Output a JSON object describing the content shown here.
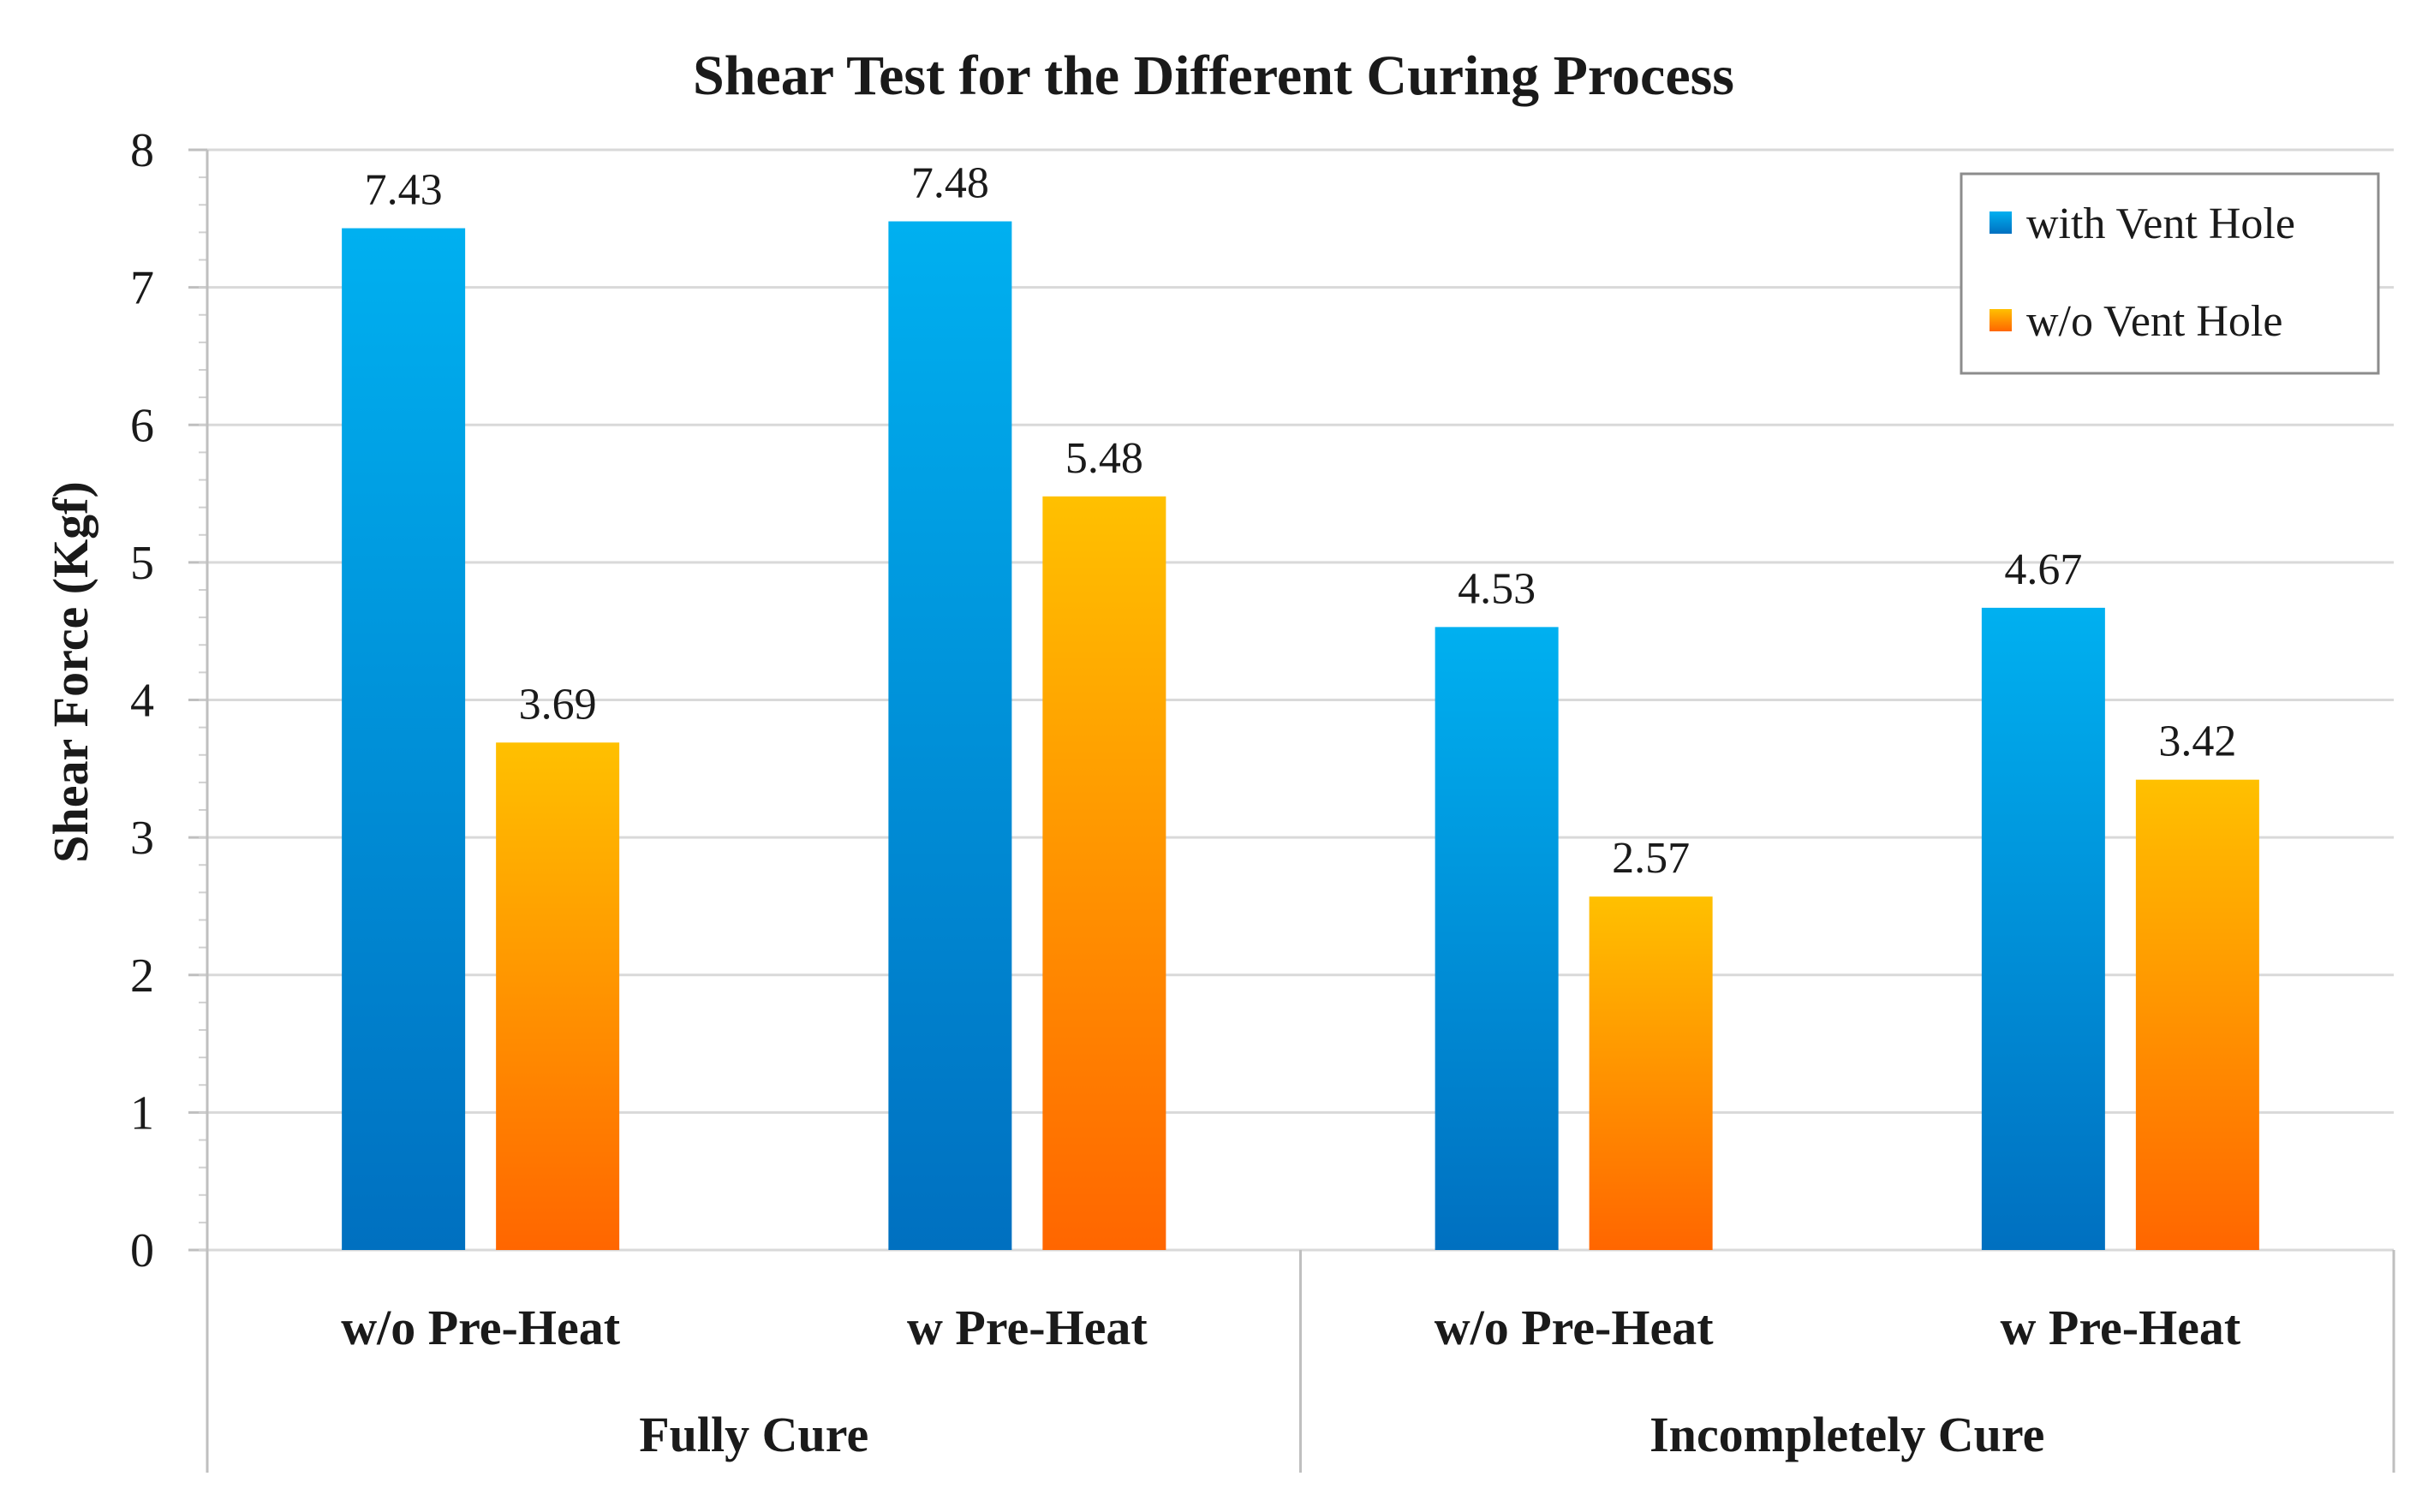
{
  "chart_data": {
    "type": "bar",
    "title": "Shear Test for the Different Curing Process",
    "ylabel": "Shear Force (Kgf)",
    "xlabel": "",
    "ylim": [
      0,
      8
    ],
    "yticks": [
      0,
      1,
      2,
      3,
      4,
      5,
      6,
      7,
      8
    ],
    "grid": true,
    "legend_position": "top-right",
    "groups": [
      {
        "label": "Fully Cure",
        "categories": [
          "w/o Pre-Heat",
          "w Pre-Heat"
        ]
      },
      {
        "label": "Incompletely Cure",
        "categories": [
          "w/o Pre-Heat",
          "w Pre-Heat"
        ]
      }
    ],
    "categories": [
      "w/o Pre-Heat",
      "w Pre-Heat",
      "w/o Pre-Heat",
      "w Pre-Heat"
    ],
    "series": [
      {
        "name": "with Vent Hole",
        "values": [
          7.43,
          7.48,
          4.53,
          4.67
        ],
        "labels": [
          "7.43",
          "7.48",
          "4.53",
          "4.67"
        ],
        "color_top": "#00b0f0",
        "color_bottom": "#0070c0"
      },
      {
        "name": "w/o Vent Hole",
        "values": [
          3.69,
          5.48,
          2.57,
          3.42
        ],
        "labels": [
          "3.69",
          "5.48",
          "2.57",
          "3.42"
        ],
        "color_top": "#ffc000",
        "color_bottom": "#ff6600"
      }
    ]
  }
}
